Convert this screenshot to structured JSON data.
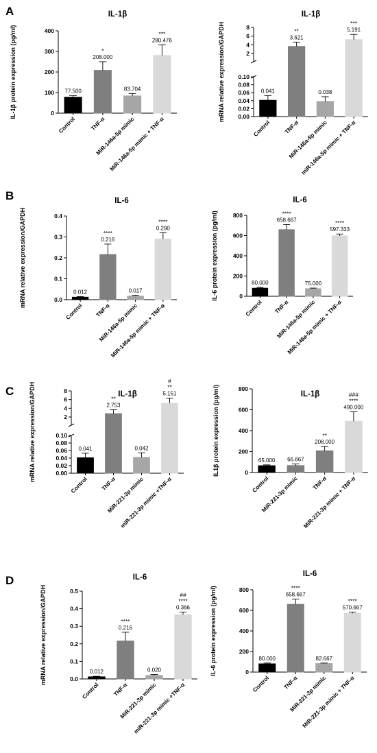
{
  "panels": [
    {
      "letter": "A",
      "name": "panel-a"
    },
    {
      "letter": "B",
      "name": "panel-b"
    },
    {
      "letter": "C",
      "name": "panel-c"
    },
    {
      "letter": "D",
      "name": "panel-d"
    }
  ],
  "colors": {
    "black": "#000000",
    "darkgray": "#7f7f7f",
    "midgray": "#a6a6a6",
    "lightgray": "#d9d9d9"
  },
  "chart_data": [
    {
      "id": "A-left",
      "type": "bar",
      "title": "IL-1β",
      "ylabel": "IL-1β protein expression (pg/ml)",
      "ylim": [
        0,
        400
      ],
      "yticks": [
        0,
        100,
        200,
        300,
        400
      ],
      "categories": [
        "Control",
        "TNF-α",
        "MiR-146a-5p mimic",
        "MiR-146a-5p mimic + TNF-α"
      ],
      "values": [
        77.5,
        208.0,
        83.704,
        280.476
      ],
      "errors": [
        8,
        42,
        12,
        52
      ],
      "value_labels": [
        "77.500",
        "208.000",
        "83.704",
        "280.476"
      ],
      "significance": [
        "",
        "*",
        "",
        "***"
      ],
      "significance2": [
        "",
        "",
        "",
        ""
      ],
      "colors": [
        "#000000",
        "#7f7f7f",
        "#a6a6a6",
        "#d9d9d9"
      ]
    },
    {
      "id": "A-right",
      "type": "bar",
      "title": "IL-1β",
      "ylabel": "mRNA relative expression/GAPDH",
      "broken_axis": {
        "lower": [
          0,
          0.1
        ],
        "upper": [
          0.1,
          8
        ],
        "lower_ticks": [
          0.0,
          0.02,
          0.04,
          0.06,
          0.08,
          0.1
        ],
        "upper_ticks": [
          2,
          4,
          6,
          8
        ]
      },
      "categories": [
        "Control",
        "TNF-α",
        "MiR-146a-5p mimic",
        "miR-146a-5p mimic + TNF-α"
      ],
      "values": [
        0.041,
        3.621,
        0.038,
        5.191
      ],
      "errors": [
        0.012,
        1.0,
        0.012,
        1.2
      ],
      "value_labels": [
        "0.041",
        "3.621",
        "0.038",
        "5.191"
      ],
      "significance": [
        "",
        "**",
        "",
        "***"
      ],
      "significance2": [
        "",
        "",
        "",
        ""
      ],
      "colors": [
        "#000000",
        "#7f7f7f",
        "#a6a6a6",
        "#d9d9d9"
      ]
    },
    {
      "id": "B-left",
      "type": "bar",
      "title": "IL-6",
      "ylabel": "mRNA relative expression/GAPDH",
      "ylim": [
        0,
        0.4
      ],
      "yticks": [
        0.0,
        0.1,
        0.2,
        0.3,
        0.4
      ],
      "categories": [
        "Control",
        "TNF-α",
        "MiR-146a-5p mimic",
        "MiR-146a-5p mimic + TNF-α"
      ],
      "values": [
        0.012,
        0.216,
        0.017,
        0.29
      ],
      "errors": [
        0.003,
        0.05,
        0.004,
        0.03
      ],
      "value_labels": [
        "0.012",
        "0.216",
        "0.017",
        "0.290"
      ],
      "significance": [
        "",
        "****",
        "",
        "****"
      ],
      "significance2": [
        "",
        "",
        "",
        ""
      ],
      "colors": [
        "#000000",
        "#7f7f7f",
        "#a6a6a6",
        "#d9d9d9"
      ]
    },
    {
      "id": "B-right",
      "type": "bar",
      "title": "IL-6",
      "ylabel": "IL-6 protein expression (pg/ml)",
      "ylim": [
        0,
        800
      ],
      "yticks": [
        0,
        200,
        400,
        600,
        800
      ],
      "categories": [
        "Control",
        "TNF-α",
        "MiR-146a-5p mimic",
        "MiR-146a-5p mimic + TNF-α"
      ],
      "values": [
        80.0,
        658.667,
        75.0,
        597.333
      ],
      "errors": [
        8,
        50,
        6,
        18
      ],
      "value_labels": [
        "80.000",
        "658.667",
        "75.000",
        "597.333"
      ],
      "significance": [
        "",
        "****",
        "",
        "****"
      ],
      "significance2": [
        "",
        "",
        "",
        ""
      ],
      "colors": [
        "#000000",
        "#7f7f7f",
        "#a6a6a6",
        "#d9d9d9"
      ]
    },
    {
      "id": "C-left",
      "type": "bar",
      "title": "IL-1β",
      "ylabel": "mRNA relative expression/GAPDH",
      "broken_axis": {
        "lower": [
          0,
          0.1
        ],
        "upper": [
          0.1,
          8
        ],
        "lower_ticks": [
          0.0,
          0.02,
          0.04,
          0.06,
          0.08,
          0.1
        ],
        "upper_ticks": [
          2,
          4,
          6,
          8
        ]
      },
      "categories": [
        "Control",
        "TNF-α",
        "MiR-221-3p mimic",
        "miR-221-3p mimic +TNF-α"
      ],
      "values": [
        0.041,
        2.753,
        0.042,
        5.151
      ],
      "errors": [
        0.012,
        0.9,
        0.012,
        1.2
      ],
      "value_labels": [
        "0.041",
        "2.753",
        "0.042",
        "5.151"
      ],
      "significance": [
        "",
        "**",
        "",
        "**"
      ],
      "significance2": [
        "",
        "",
        "",
        "#"
      ],
      "colors": [
        "#000000",
        "#7f7f7f",
        "#a6a6a6",
        "#d9d9d9"
      ]
    },
    {
      "id": "C-right",
      "type": "bar",
      "title": "IL-1β",
      "ylabel": "IL1β protein expression (pg/ml)",
      "ylim": [
        0,
        800
      ],
      "yticks": [
        0,
        200,
        400,
        600,
        800
      ],
      "categories": [
        "Control",
        "MiR-221-3p mimic",
        "TNF-α",
        "MiR-221-3p mimic + TNF-α"
      ],
      "values": [
        65.0,
        66.667,
        208.0,
        490.0
      ],
      "errors": [
        8,
        15,
        40,
        90
      ],
      "value_labels": [
        "65.000",
        "66.667",
        "208.000",
        "490.000"
      ],
      "significance": [
        "",
        "",
        "**",
        "****"
      ],
      "significance2": [
        "",
        "",
        "",
        "###"
      ],
      "colors": [
        "#000000",
        "#7f7f7f",
        "#7f7f7f",
        "#d9d9d9"
      ]
    },
    {
      "id": "D-left",
      "type": "bar",
      "title": "IL-6",
      "ylabel": "mRNA relative expression/GAPDH",
      "ylim": [
        0,
        0.5
      ],
      "yticks": [
        0.0,
        0.1,
        0.2,
        0.3,
        0.4,
        0.5
      ],
      "categories": [
        "Control",
        "TNF-α",
        "MiR-221-3p mimic",
        "miR-221-3p mimic +TNF-α"
      ],
      "values": [
        0.012,
        0.216,
        0.02,
        0.366
      ],
      "errors": [
        0.003,
        0.05,
        0.005,
        0.015
      ],
      "value_labels": [
        "0.012",
        "0.216",
        "0.020",
        "0.366"
      ],
      "significance": [
        "",
        "****",
        "",
        "****"
      ],
      "significance2": [
        "",
        "",
        "",
        "##"
      ],
      "colors": [
        "#000000",
        "#7f7f7f",
        "#a6a6a6",
        "#d9d9d9"
      ]
    },
    {
      "id": "D-right",
      "type": "bar",
      "title": "IL-6",
      "ylabel": "IL-6 protein expression (pg/ml)",
      "ylim": [
        0,
        800
      ],
      "yticks": [
        0,
        200,
        400,
        600,
        800
      ],
      "categories": [
        "Control",
        "TNF-α",
        "MiR-221-3p mimic",
        "MiR-221-3p mimic + TNF-α"
      ],
      "values": [
        80.0,
        658.667,
        82.667,
        570.667
      ],
      "errors": [
        8,
        50,
        5,
        12
      ],
      "value_labels": [
        "80.000",
        "658.667",
        "82.667",
        "570.667"
      ],
      "significance": [
        "",
        "****",
        "",
        "****"
      ],
      "significance2": [
        "",
        "",
        "",
        ""
      ],
      "colors": [
        "#000000",
        "#7f7f7f",
        "#a6a6a6",
        "#d9d9d9"
      ]
    }
  ]
}
